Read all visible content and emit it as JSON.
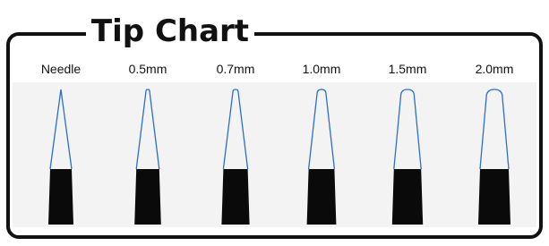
{
  "title": "Tip Chart",
  "tips": [
    "Needle",
    "0.5mm",
    "0.7mm",
    "1.0mm",
    "1.5mm",
    "2.0mm"
  ]
}
